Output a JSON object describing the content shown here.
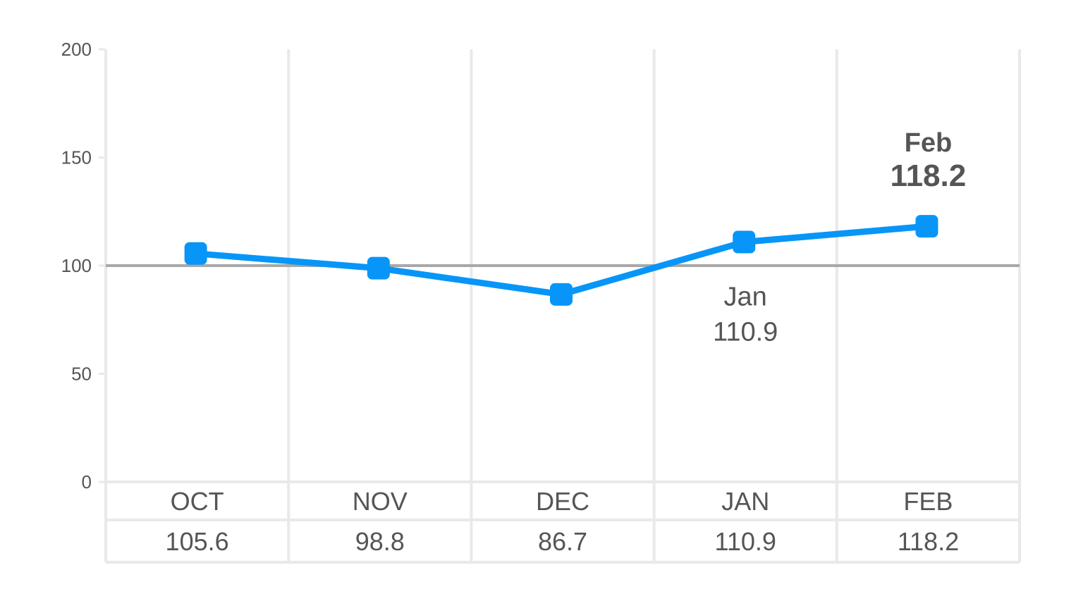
{
  "chart_data": {
    "type": "line",
    "categories": [
      "OCT",
      "NOV",
      "DEC",
      "JAN",
      "FEB"
    ],
    "values": [
      105.6,
      98.8,
      86.7,
      110.9,
      118.2
    ],
    "value_labels": [
      "105.6",
      "98.8",
      "86.7",
      "110.9",
      "118.2"
    ],
    "ylim": [
      0,
      200
    ],
    "yticks": [
      "0",
      "50",
      "100",
      "150",
      "200"
    ],
    "reference_line": 100,
    "grid": "vertical",
    "annotations": [
      {
        "month": "Jan",
        "value": "110.9",
        "highlight": false
      },
      {
        "month": "Feb",
        "value": "118.2",
        "highlight": true
      }
    ],
    "title": "",
    "xlabel": "",
    "ylabel": ""
  },
  "colors": {
    "series": "#0796f7",
    "reference": "#a8a8a8",
    "grid": "#e9e9e9",
    "text": "#555555"
  }
}
